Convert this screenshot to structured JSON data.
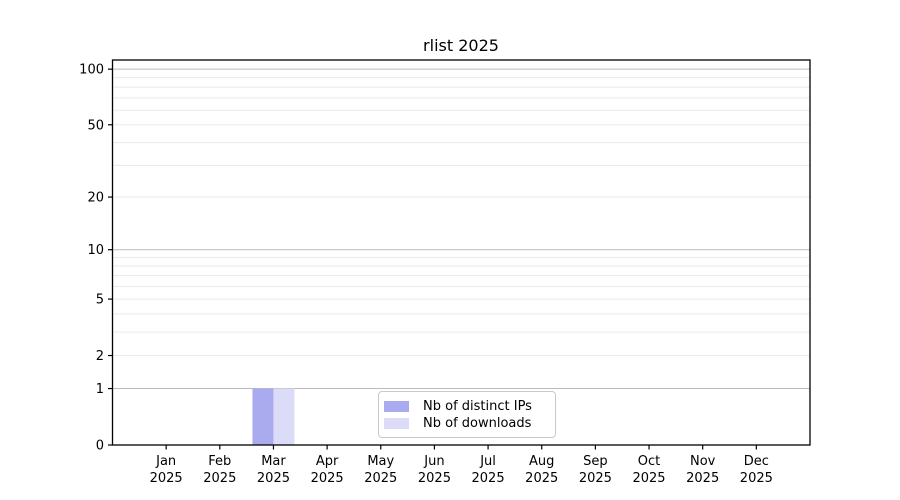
{
  "chart_data": {
    "type": "bar",
    "title": "rlist 2025",
    "categories": [
      "Jan 2025",
      "Feb 2025",
      "Mar 2025",
      "Apr 2025",
      "May 2025",
      "Jun 2025",
      "Jul 2025",
      "Aug 2025",
      "Sep 2025",
      "Oct 2025",
      "Nov 2025",
      "Dec 2025"
    ],
    "series": [
      {
        "name": "Nb of distinct IPs",
        "color": "#aaaaee",
        "values": [
          0,
          0,
          1,
          0,
          0,
          0,
          0,
          0,
          0,
          0,
          0,
          0
        ]
      },
      {
        "name": "Nb of downloads",
        "color": "#dcdcf8",
        "values": [
          0,
          0,
          1,
          0,
          0,
          0,
          0,
          0,
          0,
          0,
          0,
          0
        ]
      }
    ],
    "yaxis": {
      "scale": "log10(v+1)",
      "ylim": [
        0,
        112
      ],
      "tick_labels": [
        "0",
        "1",
        "2",
        "5",
        "10",
        "20",
        "50",
        "100"
      ],
      "tick_values": [
        0,
        1,
        2,
        5,
        10,
        20,
        50,
        100
      ],
      "major_gridline_values": [
        1,
        10,
        100
      ],
      "minor_gridline_values": [
        2,
        3,
        4,
        5,
        6,
        7,
        8,
        9,
        20,
        30,
        40,
        50,
        60,
        70,
        80,
        90
      ]
    },
    "xaxis": {
      "tick_label_lines": 2
    },
    "legend": {
      "position": "inside-bottom-center"
    },
    "grid": "horizontal",
    "colors": {
      "distinct_ips_bar": "#aaaaee",
      "downloads_bar": "#dcdcf8",
      "major_gridline": "#bbbbbb",
      "minor_gridline": "#eaeaea",
      "axis": "#000000",
      "text": "#000000",
      "legend_border": "#c9c9c9",
      "background": "#ffffff"
    }
  }
}
